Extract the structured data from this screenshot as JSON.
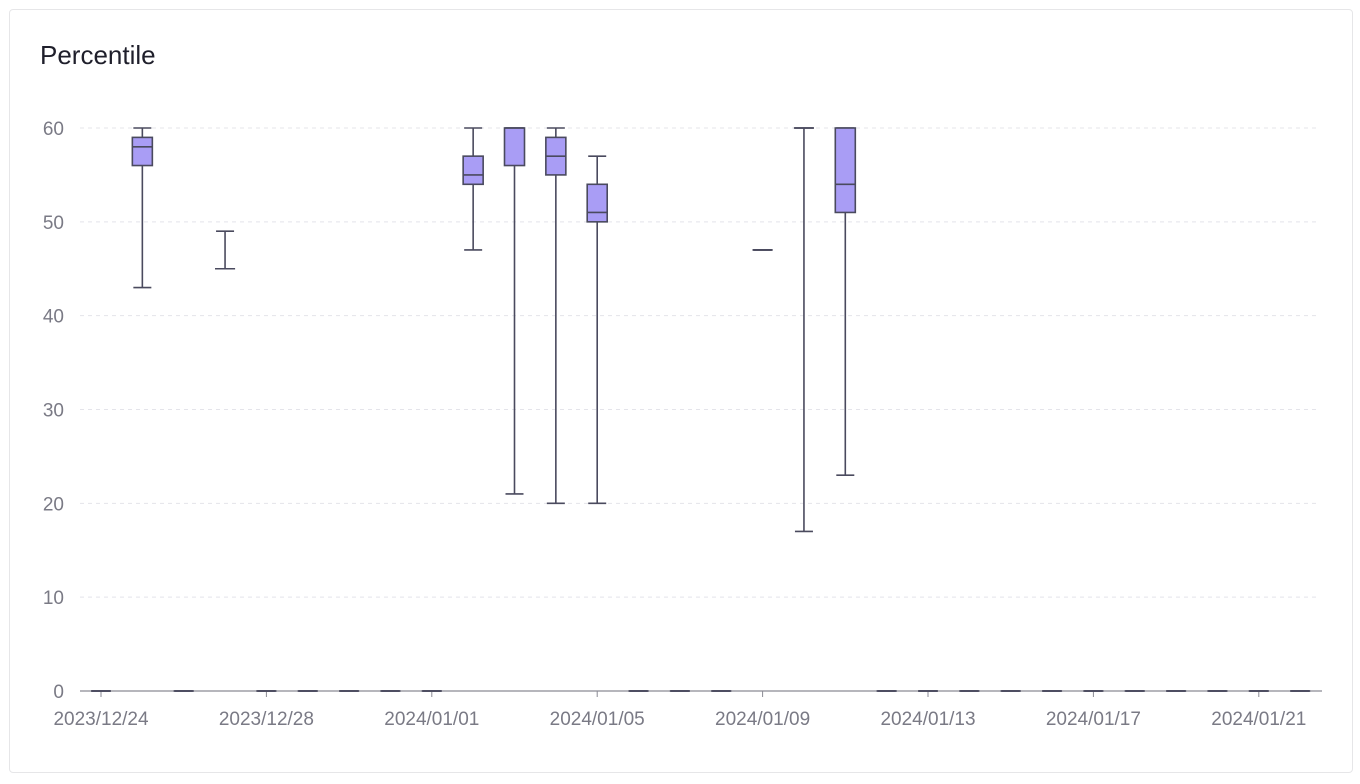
{
  "chart_data": {
    "type": "boxplot",
    "title": "Percentile",
    "xlabel": "",
    "ylabel": "",
    "ylim": [
      0,
      60
    ],
    "yticks": [
      0,
      10,
      20,
      30,
      40,
      50,
      60
    ],
    "grid": true,
    "x_tick_labels": [
      "2023/12/24",
      "2023/12/28",
      "2024/01/01",
      "2024/01/05",
      "2024/01/09",
      "2024/01/13",
      "2024/01/17",
      "2024/01/21"
    ],
    "categories": [
      "2023/12/24",
      "2023/12/25",
      "2023/12/26",
      "2023/12/27",
      "2023/12/28",
      "2023/12/29",
      "2023/12/30",
      "2023/12/31",
      "2024/01/01",
      "2024/01/02",
      "2024/01/03",
      "2024/01/04",
      "2024/01/05",
      "2024/01/06",
      "2024/01/07",
      "2024/01/08",
      "2024/01/09",
      "2024/01/10",
      "2024/01/11",
      "2024/01/12",
      "2024/01/13",
      "2024/01/14",
      "2024/01/15",
      "2024/01/16",
      "2024/01/17",
      "2024/01/18",
      "2024/01/19",
      "2024/01/20",
      "2024/01/21",
      "2024/01/22"
    ],
    "boxes": [
      {
        "min": 0,
        "q1": 0,
        "median": 0,
        "q3": 0,
        "max": 0
      },
      {
        "min": 43,
        "q1": 56,
        "median": 58,
        "q3": 59,
        "max": 60
      },
      {
        "min": 0,
        "q1": 0,
        "median": 0,
        "q3": 0,
        "max": 0
      },
      {
        "min": 45,
        "q1": 45,
        "median": 45,
        "q3": 45,
        "max": 49
      },
      {
        "min": 0,
        "q1": 0,
        "median": 0,
        "q3": 0,
        "max": 0
      },
      {
        "min": 0,
        "q1": 0,
        "median": 0,
        "q3": 0,
        "max": 0
      },
      {
        "min": 0,
        "q1": 0,
        "median": 0,
        "q3": 0,
        "max": 0
      },
      {
        "min": 0,
        "q1": 0,
        "median": 0,
        "q3": 0,
        "max": 0
      },
      {
        "min": 0,
        "q1": 0,
        "median": 0,
        "q3": 0,
        "max": 0
      },
      {
        "min": 47,
        "q1": 54,
        "median": 55,
        "q3": 57,
        "max": 60
      },
      {
        "min": 21,
        "q1": 56,
        "median": 60,
        "q3": 60,
        "max": 60
      },
      {
        "min": 20,
        "q1": 55,
        "median": 57,
        "q3": 59,
        "max": 60
      },
      {
        "min": 20,
        "q1": 50,
        "median": 51,
        "q3": 54,
        "max": 57
      },
      {
        "min": 0,
        "q1": 0,
        "median": 0,
        "q3": 0,
        "max": 0
      },
      {
        "min": 0,
        "q1": 0,
        "median": 0,
        "q3": 0,
        "max": 0
      },
      {
        "min": 0,
        "q1": 0,
        "median": 0,
        "q3": 0,
        "max": 0
      },
      {
        "min": 47,
        "q1": 47,
        "median": 47,
        "q3": 47,
        "max": 47
      },
      {
        "min": 17,
        "q1": 60,
        "median": 60,
        "q3": 60,
        "max": 60
      },
      {
        "min": 23,
        "q1": 51,
        "median": 54,
        "q3": 60,
        "max": 60
      },
      {
        "min": 0,
        "q1": 0,
        "median": 0,
        "q3": 0,
        "max": 0
      },
      {
        "min": 0,
        "q1": 0,
        "median": 0,
        "q3": 0,
        "max": 0
      },
      {
        "min": 0,
        "q1": 0,
        "median": 0,
        "q3": 0,
        "max": 0
      },
      {
        "min": 0,
        "q1": 0,
        "median": 0,
        "q3": 0,
        "max": 0
      },
      {
        "min": 0,
        "q1": 0,
        "median": 0,
        "q3": 0,
        "max": 0
      },
      {
        "min": 0,
        "q1": 0,
        "median": 0,
        "q3": 0,
        "max": 0
      },
      {
        "min": 0,
        "q1": 0,
        "median": 0,
        "q3": 0,
        "max": 0
      },
      {
        "min": 0,
        "q1": 0,
        "median": 0,
        "q3": 0,
        "max": 0
      },
      {
        "min": 0,
        "q1": 0,
        "median": 0,
        "q3": 0,
        "max": 0
      },
      {
        "min": 0,
        "q1": 0,
        "median": 0,
        "q3": 0,
        "max": 0
      },
      {
        "min": 0,
        "q1": 0,
        "median": 0,
        "q3": 0,
        "max": 0
      }
    ],
    "colors": {
      "box_fill": "#a99df5",
      "stroke": "#4a4a5e",
      "grid": "#e4e4ea",
      "axis": "#8a8a94"
    }
  }
}
